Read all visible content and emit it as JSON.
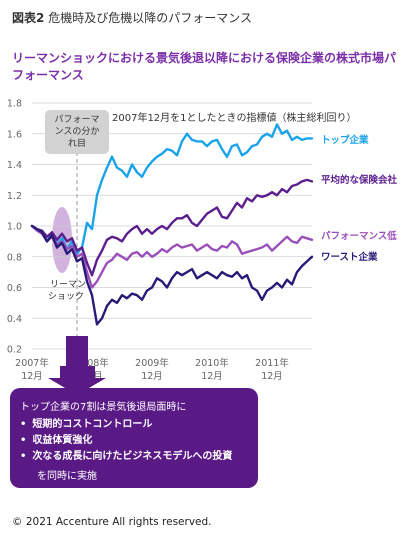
{
  "figure_label": "図表2",
  "figure_caption": "危機時及び危機以降のパフォーマンス",
  "chart_data": {
    "type": "line",
    "title": "リーマンショックにおける景気後退以降における保険企業の株式市場パフォーマンス",
    "annotation": "2007年12月を1としたときの指標値（株主総利回り）",
    "xlabel": "",
    "ylabel": "",
    "ylim": [
      0.2,
      1.8
    ],
    "yticks": [
      "0.2",
      "0.4",
      "0.6",
      "0.8",
      "1.0",
      "1.2",
      "1.4",
      "1.6",
      "1.8"
    ],
    "xticks": [
      {
        "year": "2007年",
        "month": "12月"
      },
      {
        "year": "2008年",
        "month": "12月"
      },
      {
        "year": "2009年",
        "month": "12月"
      },
      {
        "year": "2010年",
        "month": "12月"
      },
      {
        "year": "2011年",
        "month": "12月"
      }
    ],
    "x_month_offset": [
      0,
      12,
      24,
      36,
      48
    ],
    "divider_label": "パフォーマンスの分かれ目",
    "lehman_label": "リーマンショック",
    "grid": true,
    "series": [
      {
        "name": "トップ企業",
        "color": "#1aa3e8",
        "values": [
          1.0,
          0.98,
          0.96,
          0.9,
          0.95,
          0.88,
          0.92,
          0.85,
          0.9,
          0.82,
          0.86,
          1.02,
          0.98,
          1.2,
          1.3,
          1.38,
          1.45,
          1.38,
          1.36,
          1.32,
          1.4,
          1.35,
          1.32,
          1.38,
          1.42,
          1.45,
          1.47,
          1.5,
          1.49,
          1.46,
          1.55,
          1.6,
          1.56,
          1.55,
          1.55,
          1.52,
          1.55,
          1.56,
          1.5,
          1.45,
          1.52,
          1.53,
          1.46,
          1.48,
          1.52,
          1.53,
          1.58,
          1.6,
          1.58,
          1.66,
          1.6,
          1.62,
          1.56,
          1.58,
          1.56,
          1.57,
          1.57
        ]
      },
      {
        "name": "平均的な保険会社",
        "color": "#5b1f8e",
        "values": [
          1.0,
          0.98,
          0.97,
          0.93,
          0.96,
          0.91,
          0.95,
          0.9,
          0.92,
          0.84,
          0.86,
          0.76,
          0.68,
          0.78,
          0.84,
          0.91,
          0.93,
          0.92,
          0.9,
          0.95,
          0.98,
          1.0,
          0.95,
          0.98,
          0.95,
          0.98,
          1.0,
          0.98,
          1.02,
          1.05,
          1.05,
          1.07,
          1.02,
          1.0,
          1.04,
          1.08,
          1.1,
          1.12,
          1.06,
          1.05,
          1.1,
          1.15,
          1.12,
          1.18,
          1.16,
          1.2,
          1.19,
          1.2,
          1.22,
          1.2,
          1.24,
          1.22,
          1.26,
          1.27,
          1.29,
          1.3,
          1.29
        ]
      },
      {
        "name": "パフォーマンス低",
        "color": "#9b4fba",
        "values": [
          1.0,
          0.97,
          0.95,
          0.9,
          0.93,
          0.88,
          0.9,
          0.85,
          0.87,
          0.8,
          0.82,
          0.7,
          0.6,
          0.64,
          0.7,
          0.76,
          0.78,
          0.82,
          0.8,
          0.78,
          0.82,
          0.83,
          0.8,
          0.83,
          0.8,
          0.82,
          0.85,
          0.83,
          0.86,
          0.88,
          0.86,
          0.87,
          0.88,
          0.84,
          0.86,
          0.88,
          0.85,
          0.84,
          0.87,
          0.86,
          0.9,
          0.88,
          0.82,
          0.83,
          0.84,
          0.85,
          0.86,
          0.88,
          0.84,
          0.87,
          0.9,
          0.93,
          0.9,
          0.89,
          0.93,
          0.92,
          0.91
        ]
      },
      {
        "name": "ワースト企業",
        "color": "#2a1a78",
        "values": [
          1.0,
          0.98,
          0.96,
          0.9,
          0.94,
          0.86,
          0.89,
          0.82,
          0.85,
          0.77,
          0.79,
          0.64,
          0.55,
          0.36,
          0.4,
          0.48,
          0.52,
          0.5,
          0.55,
          0.53,
          0.56,
          0.55,
          0.52,
          0.58,
          0.6,
          0.66,
          0.64,
          0.6,
          0.66,
          0.7,
          0.68,
          0.7,
          0.72,
          0.66,
          0.68,
          0.7,
          0.68,
          0.66,
          0.7,
          0.68,
          0.67,
          0.7,
          0.66,
          0.68,
          0.6,
          0.58,
          0.52,
          0.58,
          0.6,
          0.63,
          0.6,
          0.65,
          0.62,
          0.7,
          0.74,
          0.77,
          0.8
        ]
      }
    ]
  },
  "callout": {
    "headline": "トップ企業の7割は景気後退局面時に",
    "items": [
      "短期的コストコントロール",
      "収益体質強化",
      "次なる成長に向けたビジネスモデルへの投資"
    ],
    "footer": "を同時に実施"
  },
  "copyright": "© 2021 Accenture All rights reserved."
}
